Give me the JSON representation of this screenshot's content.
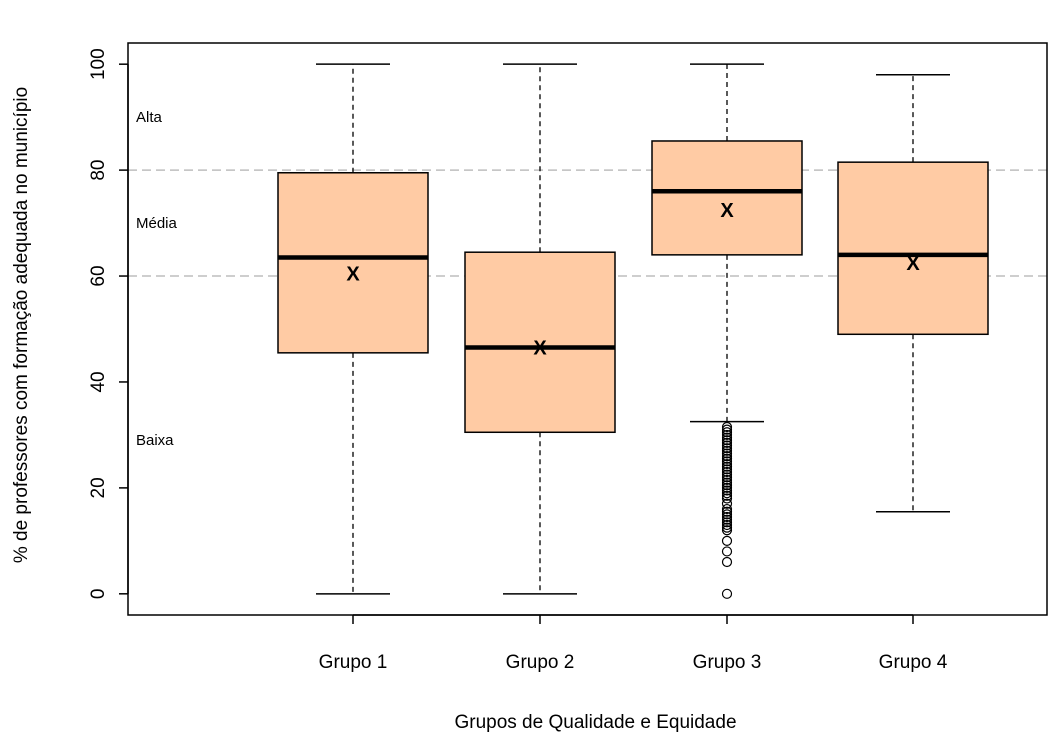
{
  "chart_data": {
    "type": "boxplot",
    "title": "",
    "xlabel": "Grupos de Qualidade e Equidade",
    "ylabel": "% de professores com formação adequada no município",
    "ylim": [
      -4,
      104
    ],
    "yticks": [
      0,
      20,
      40,
      60,
      80,
      100
    ],
    "categories": [
      "Grupo 1",
      "Grupo 2",
      "Grupo 3",
      "Grupo 4"
    ],
    "boxes": [
      {
        "category": "Grupo 1",
        "min": 0,
        "q1": 45.5,
        "median": 63.5,
        "q3": 79.5,
        "max": 100,
        "mean": 60.5,
        "outliers": []
      },
      {
        "category": "Grupo 2",
        "min": 0,
        "q1": 30.5,
        "median": 46.5,
        "q3": 64.5,
        "max": 100,
        "mean": 46.5,
        "outliers": []
      },
      {
        "category": "Grupo 3",
        "min": 32.5,
        "q1": 64,
        "median": 76,
        "q3": 85.5,
        "max": 100,
        "mean": 72.5,
        "outliers": [
          31.5,
          31,
          30.5,
          30,
          29.5,
          29,
          28.5,
          28,
          27.5,
          27,
          26.5,
          26,
          25.5,
          25,
          24.5,
          24,
          23.5,
          23,
          22.5,
          22,
          21.5,
          21,
          20.5,
          20,
          19.5,
          19,
          18.5,
          18,
          17,
          16,
          15.5,
          15,
          14.5,
          14,
          13.5,
          13,
          12.5,
          12,
          10,
          8,
          6,
          0
        ]
      },
      {
        "category": "Grupo 4",
        "min": 15.5,
        "q1": 49,
        "median": 64,
        "q3": 81.5,
        "max": 98,
        "mean": 62.5,
        "outliers": []
      }
    ],
    "mean_marker": "X",
    "reference_lines": [
      80,
      60
    ],
    "level_labels": [
      {
        "text": "Alta",
        "y": 90
      },
      {
        "text": "Média",
        "y": 70
      },
      {
        "text": "Baixa",
        "y": 29
      }
    ],
    "grid": false,
    "colors": {
      "box_fill": "#FFCBA4",
      "reference_line": "#BEBEBE",
      "ink": "#000000"
    }
  }
}
